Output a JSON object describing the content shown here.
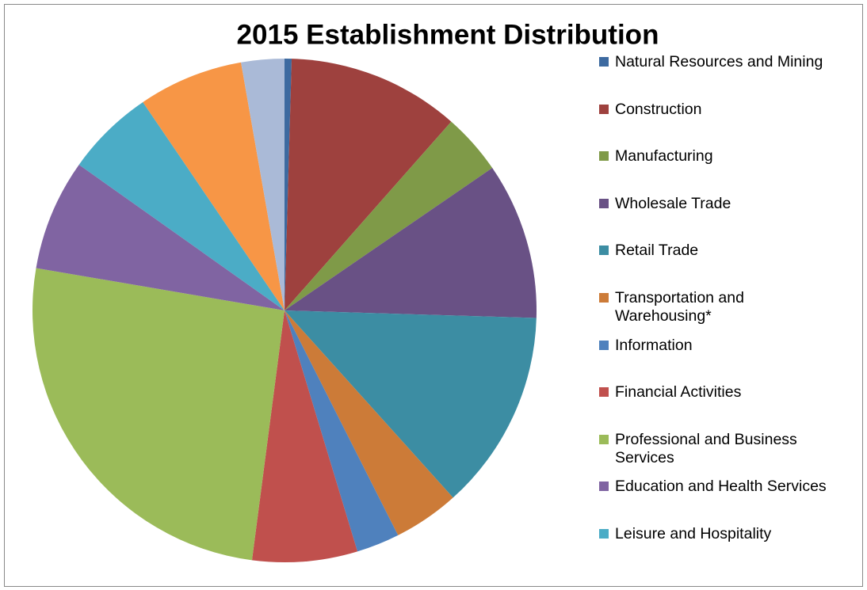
{
  "chart_data": {
    "type": "pie",
    "title": "2015 Establishment Distribution",
    "categories": [
      "Natural Resources and Mining",
      "Construction",
      "Manufacturing",
      "Wholesale Trade",
      "Retail Trade",
      "Transportation and Warehousing*",
      "Information",
      "Financial Activities",
      "Professional and Business Services",
      "Education and Health Services",
      "Leisure and Hospitality",
      null,
      null
    ],
    "values": [
      0.45,
      11,
      3.9,
      10,
      12.8,
      4.2,
      2.75,
      6.7,
      25.5,
      7.1,
      5.65,
      6.7,
      2.75
    ],
    "colors": [
      "#3d6aa0",
      "#9e413e",
      "#7f9a48",
      "#695185",
      "#3c8da3",
      "#cc7b38",
      "#4f81bd",
      "#c0504d",
      "#9bbb59",
      "#8064a2",
      "#4bacc6",
      "#f79646",
      "#aabad7"
    ],
    "legend": "right"
  }
}
